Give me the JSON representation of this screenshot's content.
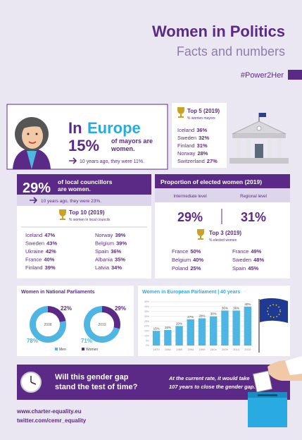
{
  "header": {
    "title": "Women in Politics",
    "subtitle": "Facts and numbers",
    "hashtag": "#Power2Her"
  },
  "mayors": {
    "prefix": "In",
    "region": "Europe",
    "percent": "15%",
    "label": [
      "of mayors are",
      "women."
    ],
    "note": "10 years ago, they were 11%."
  },
  "top5": {
    "title": "Top 5 (2019)",
    "subtitle": "% women mayors",
    "items": [
      [
        "Iceland",
        "36%"
      ],
      [
        "Sweden",
        "32%"
      ],
      [
        "Finland",
        "31%"
      ],
      [
        "Norway",
        "28%"
      ],
      [
        "Switzerland",
        "27%"
      ]
    ]
  },
  "councillors": {
    "percent": "29%",
    "label": [
      "of local councillors",
      "are women."
    ],
    "note": "10 years ago, they were 23%.",
    "top10": {
      "title": "Top 10 (2019)",
      "subtitle": "% women in local councils",
      "items": [
        [
          "Iceland",
          "47%"
        ],
        [
          "Sweden",
          "43%"
        ],
        [
          "Ukraine",
          "42%"
        ],
        [
          "France",
          "40%"
        ],
        [
          "Finland",
          "39%"
        ],
        [
          "Norway",
          "39%"
        ],
        [
          "Belgium",
          "39%"
        ],
        [
          "Spain",
          "36%"
        ],
        [
          "Albania",
          "35%"
        ],
        [
          "Latvia",
          "34%"
        ]
      ]
    }
  },
  "elected": {
    "title": "Proportion of elected women (2019)",
    "top3_title": "Top 3 (2019)",
    "top3_subtitle": "% elected women",
    "levels": [
      {
        "label": "Intermediate level",
        "value": "29%",
        "top3": [
          [
            "France",
            "50%"
          ],
          [
            "Belgium",
            "40%"
          ],
          [
            "Poland",
            "25%"
          ]
        ]
      },
      {
        "label": "Regional level",
        "value": "31%",
        "top3": [
          [
            "France",
            "49%"
          ],
          [
            "Sweden",
            "48%"
          ],
          [
            "Spain",
            "45%"
          ]
        ]
      }
    ]
  },
  "chart_data": [
    {
      "type": "donut",
      "title": "Women in National Parliaments",
      "categories": [
        "2008",
        "2019"
      ],
      "series": [
        {
          "name": "Men",
          "color": "#4fb6e3",
          "values": [
            78,
            71
          ],
          "value_labels": [
            "78%",
            "71%"
          ]
        },
        {
          "name": "Women",
          "color": "#5b2a86",
          "values": [
            22,
            29
          ],
          "value_labels": [
            "22%",
            "29%"
          ]
        }
      ]
    },
    {
      "type": "bar",
      "title": "Women in European Parliament | 40 years",
      "categories": [
        "1979",
        "1984",
        "1989",
        "1994",
        "1999",
        "2004",
        "2009",
        "2014",
        "2019"
      ],
      "values": [
        15,
        16,
        20,
        27,
        28,
        30,
        36,
        36,
        40
      ],
      "value_labels": [
        "15%",
        "16%",
        "20%",
        "27%",
        "28%",
        "30%",
        "36%",
        "36%",
        "40%"
      ],
      "color": "#4fb6e3",
      "ylim": [
        0,
        45
      ],
      "yticks": [
        {
          "value": 0,
          "label": "0%"
        },
        {
          "value": 5,
          "label": "5%"
        },
        {
          "value": 10,
          "label": "10%"
        },
        {
          "value": 15,
          "label": "15%"
        },
        {
          "value": 20,
          "label": "20%"
        },
        {
          "value": 25,
          "label": "25%"
        },
        {
          "value": 30,
          "label": "30%"
        },
        {
          "value": 35,
          "label": "35%"
        },
        {
          "value": 40,
          "label": "40%"
        },
        {
          "value": 45,
          "label": "45%"
        }
      ],
      "grid": true
    }
  ],
  "footer": {
    "question": [
      "Will this gender gap",
      "stand the test of time?"
    ],
    "answer": [
      "At the current rate, it would take",
      "107 years to close the gender gap."
    ]
  },
  "links": [
    "www.charter-equality.eu",
    "twitter.com/cemr_equality"
  ]
}
